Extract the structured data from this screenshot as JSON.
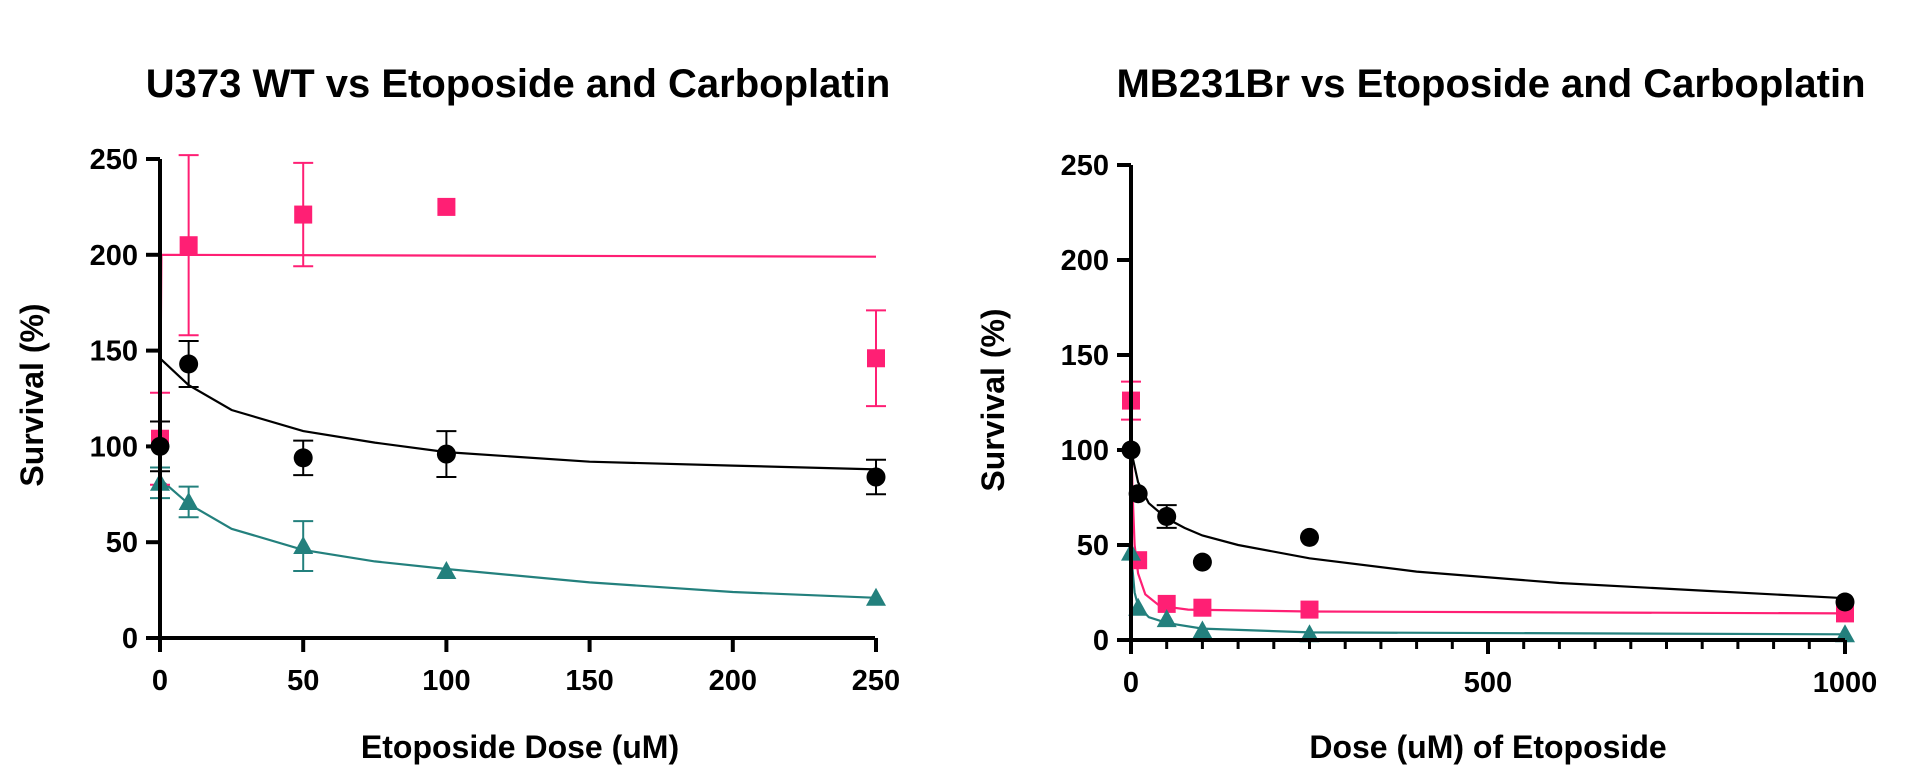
{
  "colors": {
    "black": "#000000",
    "pink": "#ff1f74",
    "teal": "#23807d"
  },
  "chart_data": [
    {
      "type": "scatter",
      "title": "U373 WT vs Etoposide and Carboplatin",
      "xlabel": "Etoposide Dose (uM)",
      "ylabel": "Survival (%)",
      "xlim": [
        0,
        250
      ],
      "ylim": [
        0,
        250
      ],
      "xticks": [
        0,
        50,
        100,
        150,
        200,
        250
      ],
      "yticks": [
        0,
        50,
        100,
        150,
        200,
        250
      ],
      "xtick_labels": [
        "0",
        "50",
        "100",
        "150",
        "200",
        "250"
      ],
      "ytick_labels": [
        "0",
        "50",
        "100",
        "150",
        "200",
        "250"
      ],
      "grid": false,
      "series": [
        {
          "name": "pink-series",
          "marker": "square",
          "color": "#ff1f74",
          "x": [
            0,
            10,
            50,
            100,
            250
          ],
          "y": [
            104,
            205,
            221,
            225,
            146
          ],
          "err": [
            24,
            47,
            27,
            0,
            25
          ],
          "fit": [
            [
              0,
              104
            ],
            [
              0.5,
              200
            ],
            [
              250,
              199
            ]
          ]
        },
        {
          "name": "black-series",
          "marker": "circle",
          "color": "#000000",
          "x": [
            0,
            10,
            50,
            100,
            250
          ],
          "y": [
            100,
            143,
            94,
            96,
            84
          ],
          "err": [
            13,
            12,
            9,
            12,
            9
          ],
          "fit": [
            [
              0,
              146
            ],
            [
              10,
              132
            ],
            [
              25,
              119
            ],
            [
              50,
              108
            ],
            [
              75,
              102
            ],
            [
              100,
              97
            ],
            [
              150,
              92
            ],
            [
              200,
              90
            ],
            [
              250,
              88
            ]
          ]
        },
        {
          "name": "teal-series",
          "marker": "triangle",
          "color": "#23807d",
          "x": [
            0,
            10,
            50,
            100,
            250
          ],
          "y": [
            81,
            71,
            48,
            35,
            21
          ],
          "err": [
            8,
            8,
            13,
            0,
            0
          ],
          "fit": [
            [
              0,
              83
            ],
            [
              10,
              70
            ],
            [
              25,
              57
            ],
            [
              50,
              46
            ],
            [
              75,
              40
            ],
            [
              100,
              36
            ],
            [
              150,
              29
            ],
            [
              200,
              24
            ],
            [
              250,
              21
            ]
          ]
        }
      ]
    },
    {
      "type": "scatter",
      "title": "MB231Br vs Etoposide and Carboplatin",
      "xlabel": "Dose (uM) of Etoposide",
      "ylabel": "Survival (%)",
      "xlim": [
        0,
        1000
      ],
      "ylim": [
        0,
        250
      ],
      "xticks": [
        0,
        500,
        1000
      ],
      "minor_xticks": [
        50,
        100,
        150,
        200,
        250,
        300,
        350,
        400,
        450,
        550,
        600,
        650,
        700,
        750,
        800,
        850,
        900,
        950
      ],
      "yticks": [
        0,
        50,
        100,
        150,
        200,
        250
      ],
      "xtick_labels": [
        "0",
        "500",
        "1000"
      ],
      "ytick_labels": [
        "0",
        "50",
        "100",
        "150",
        "200",
        "250"
      ],
      "grid": false,
      "series": [
        {
          "name": "pink-series",
          "marker": "square",
          "color": "#ff1f74",
          "x": [
            0,
            10,
            50,
            100,
            250,
            1000
          ],
          "y": [
            126,
            42,
            19,
            17,
            16,
            14
          ],
          "err": [
            10,
            0,
            0,
            0,
            0,
            0
          ],
          "fit": [
            [
              0,
              126
            ],
            [
              2,
              80
            ],
            [
              5,
              50
            ],
            [
              10,
              35
            ],
            [
              20,
              24
            ],
            [
              40,
              18
            ],
            [
              80,
              16
            ],
            [
              250,
              15
            ],
            [
              1000,
              14
            ]
          ]
        },
        {
          "name": "black-series",
          "marker": "circle",
          "color": "#000000",
          "x": [
            0,
            10,
            50,
            100,
            250,
            1000
          ],
          "y": [
            100,
            77,
            65,
            41,
            54,
            20
          ],
          "err": [
            0,
            0,
            6,
            0,
            0,
            0
          ],
          "fit": [
            [
              0,
              100
            ],
            [
              10,
              83
            ],
            [
              25,
              72
            ],
            [
              50,
              64
            ],
            [
              75,
              59
            ],
            [
              100,
              55
            ],
            [
              150,
              50
            ],
            [
              250,
              43
            ],
            [
              400,
              36
            ],
            [
              600,
              30
            ],
            [
              800,
              26
            ],
            [
              1000,
              22
            ]
          ]
        },
        {
          "name": "teal-series",
          "marker": "triangle",
          "color": "#23807d",
          "x": [
            0,
            10,
            50,
            100,
            250,
            1000
          ],
          "y": [
            46,
            17,
            11,
            5,
            3,
            3
          ],
          "err": [
            0,
            0,
            0,
            0,
            0,
            0
          ],
          "fit": [
            [
              0,
              46
            ],
            [
              5,
              25
            ],
            [
              10,
              18
            ],
            [
              25,
              12
            ],
            [
              50,
              9
            ],
            [
              100,
              6
            ],
            [
              250,
              4
            ],
            [
              1000,
              3
            ]
          ]
        }
      ]
    }
  ]
}
